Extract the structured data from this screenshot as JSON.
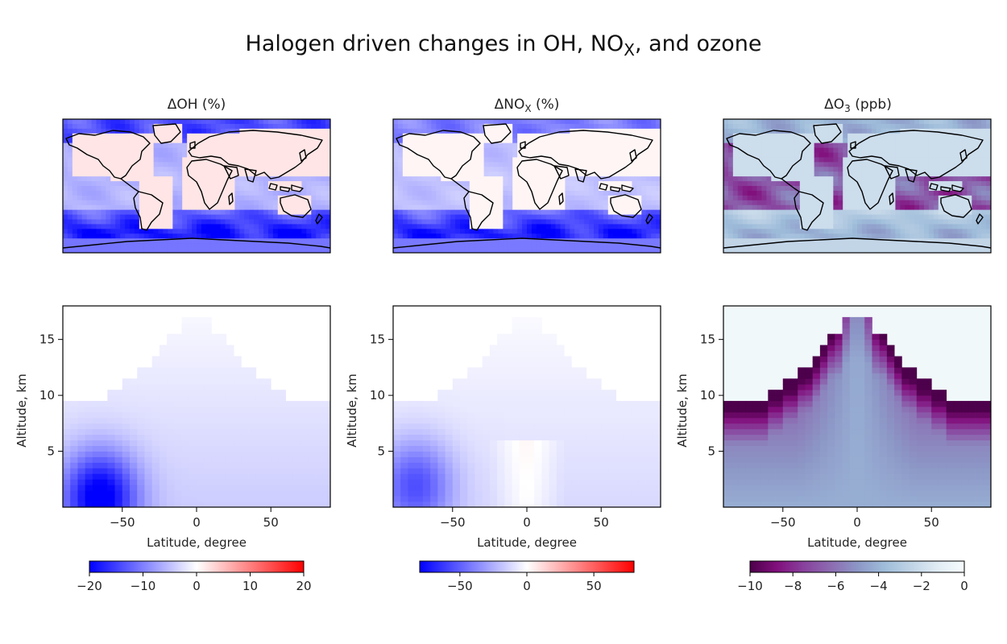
{
  "figure": {
    "title_main": "Halogen driven changes in OH, NO",
    "title_sub": "X",
    "title_rest": ", and ozone"
  },
  "panels": [
    {
      "title_main": "ΔOH (%)",
      "title_sub": "",
      "title_rest": ""
    },
    {
      "title_main": "ΔNO",
      "title_sub": "X",
      "title_rest": " (%)"
    },
    {
      "title_main": "ΔO",
      "title_sub": "3",
      "title_rest": " (ppb)"
    }
  ],
  "colors": {
    "bwr_low": "#0000ff",
    "bwr_mid": "#ffffff",
    "bwr_high": "#ff0000",
    "bupu": [
      "#4d004b",
      "#810f7c",
      "#88419d",
      "#8c6bb1",
      "#8c96c6",
      "#9ebcda",
      "#bfd3e6",
      "#e0ecf4",
      "#f7fcfd"
    ],
    "land_outline": "#000000"
  },
  "chart_data": [
    {
      "type": "heatmap",
      "subtype": "map",
      "title": "ΔOH (%)",
      "colormap": "bwr",
      "vmin": -20,
      "vmax": 20,
      "description_values": {
        "land": 2,
        "tropical_ocean": -6,
        "southern_ocean": -18,
        "arctic_ocean": -14
      }
    },
    {
      "type": "heatmap",
      "subtype": "map",
      "title": "ΔNOX (%)",
      "colormap": "bwr",
      "vmin": -80,
      "vmax": 80,
      "description_values": {
        "land": 3,
        "tropical_ocean": -20,
        "southern_ocean": -70,
        "arctic_ocean": -40
      }
    },
    {
      "type": "heatmap",
      "subtype": "map",
      "title": "ΔO3 (ppb)",
      "colormap": "BuPu_r",
      "vmin": -10,
      "vmax": 0,
      "description_values": {
        "land": -2,
        "tropical_ocean": -7,
        "southern_ocean": -4,
        "arctic_ocean": -4
      }
    },
    {
      "type": "heatmap",
      "subtype": "latitude-altitude",
      "xlabel": "Latitude, degree",
      "ylabel": "Altitude, km",
      "xlim": [
        -90,
        90
      ],
      "ylim": [
        0,
        18
      ],
      "xticks": [
        -50,
        0,
        50
      ],
      "yticks": [
        5,
        10,
        15
      ],
      "xtick_labels": [
        "−50",
        "0",
        "50"
      ],
      "ytick_labels": [
        "5",
        "10",
        "15"
      ],
      "colormap": "bwr",
      "vmin": -20,
      "vmax": 20,
      "min_value_location": {
        "lat": -65,
        "alt": 1,
        "value": -18
      }
    },
    {
      "type": "heatmap",
      "subtype": "latitude-altitude",
      "xlabel": "Latitude, degree",
      "ylabel": "Altitude, km",
      "xlim": [
        -90,
        90
      ],
      "ylim": [
        0,
        18
      ],
      "xticks": [
        -50,
        0,
        50
      ],
      "yticks": [
        5,
        10,
        15
      ],
      "xtick_labels": [
        "−50",
        "0",
        "50"
      ],
      "ytick_labels": [
        "5",
        "10",
        "15"
      ],
      "colormap": "bwr",
      "vmin": -80,
      "vmax": 80,
      "min_value_location": {
        "lat": -75,
        "alt": 2,
        "value": -45
      }
    },
    {
      "type": "heatmap",
      "subtype": "latitude-altitude",
      "xlabel": "Latitude, degree",
      "ylabel": "Altitude, km",
      "xlim": [
        -90,
        90
      ],
      "ylim": [
        0,
        18
      ],
      "xticks": [
        -50,
        0,
        50
      ],
      "yticks": [
        5,
        10,
        15
      ],
      "xtick_labels": [
        "−50",
        "0",
        "50"
      ],
      "ytick_labels": [
        "5",
        "10",
        "15"
      ],
      "colormap": "BuPu_r",
      "vmin": -10,
      "vmax": 0,
      "min_value_location": {
        "lat": -28,
        "alt": 13,
        "value": -10
      }
    }
  ],
  "colorbars": [
    {
      "ticks": [
        -20,
        -10,
        0,
        10,
        20
      ],
      "tick_labels": [
        "−20",
        "−10",
        "0",
        "10",
        "20"
      ],
      "vmin": -20,
      "vmax": 20,
      "colormap": "bwr"
    },
    {
      "ticks": [
        -50,
        0,
        50
      ],
      "tick_labels": [
        "−50",
        "0",
        "50"
      ],
      "vmin": -80,
      "vmax": 80,
      "colormap": "bwr"
    },
    {
      "ticks": [
        -10,
        -8,
        -6,
        -4,
        -2,
        0
      ],
      "tick_labels": [
        "−10",
        "−8",
        "−6",
        "−4",
        "−2",
        "0"
      ],
      "vmin": -10,
      "vmax": 0,
      "colormap": "BuPu_r"
    }
  ]
}
